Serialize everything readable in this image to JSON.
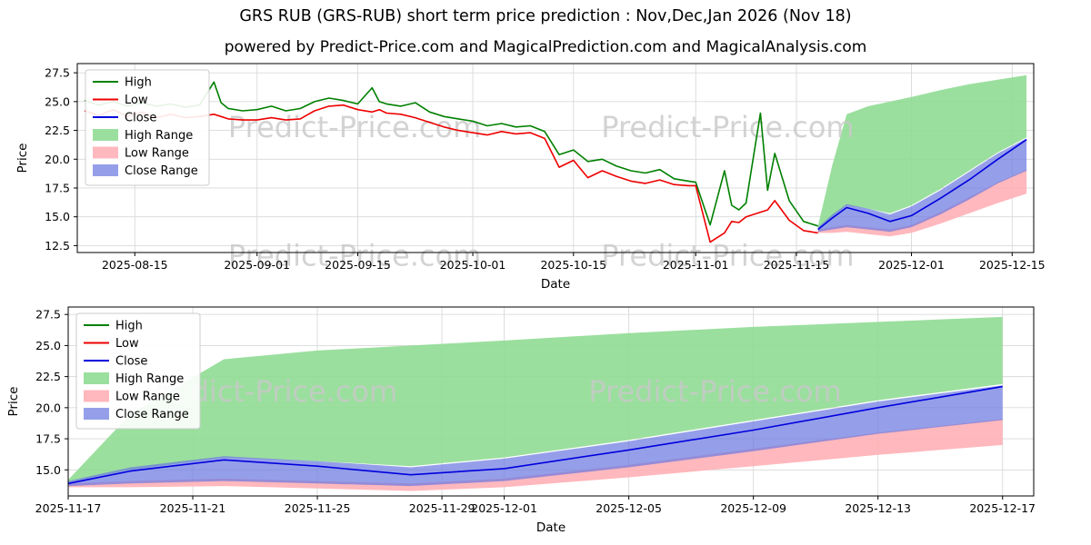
{
  "figure": {
    "title": "GRS RUB (GRS-RUB) short term price prediction : Nov,Dec,Jan 2026 (Nov 18)",
    "subtitle": "powered by Predict-Price.com and MagicalPrediction.com and MagicalAnalysis.com",
    "watermark_color": "#c9c9c9"
  },
  "chart_data": [
    {
      "type": "line",
      "title": "",
      "xlabel": "Date",
      "ylabel": "Price",
      "grid": true,
      "legend_position": "upper-left",
      "x_domain": [
        "2025-08-07",
        "2025-12-18"
      ],
      "y_domain": [
        11.9,
        28.3
      ],
      "x_ticks": [
        "2025-08-15",
        "2025-09-01",
        "2025-09-15",
        "2025-10-01",
        "2025-10-15",
        "2025-11-01",
        "2025-11-15",
        "2025-12-01",
        "2025-12-15"
      ],
      "y_ticks": [
        {
          "v": 12.5,
          "label": "12.5"
        },
        {
          "v": 15.0,
          "label": "15.0"
        },
        {
          "v": 17.5,
          "label": "17.5"
        },
        {
          "v": 20.0,
          "label": "20.0"
        },
        {
          "v": 22.5,
          "label": "22.5"
        },
        {
          "v": 25.0,
          "label": "25.0"
        },
        {
          "v": 27.5,
          "label": "27.5"
        }
      ],
      "legend": [
        {
          "id": "high",
          "label": "High",
          "kind": "line",
          "color": "#008000"
        },
        {
          "id": "low",
          "label": "Low",
          "kind": "line",
          "color": "#ee0000"
        },
        {
          "id": "close",
          "label": "Close",
          "kind": "line",
          "color": "#0000dd"
        },
        {
          "id": "high-range",
          "label": "High Range",
          "kind": "patch",
          "color": "rgba(144,220,148,0.9)"
        },
        {
          "id": "low-range",
          "label": "Low Range",
          "kind": "patch",
          "color": "rgba(255,176,182,0.9)"
        },
        {
          "id": "close-range",
          "label": "Close Range",
          "kind": "patch",
          "color": "rgba(108,122,224,0.72)"
        }
      ],
      "bands": [
        {
          "id": "high-range",
          "color": "rgba(144,220,148,0.9)",
          "x": [
            "2025-11-18",
            "2025-11-20",
            "2025-11-22",
            "2025-11-25",
            "2025-11-28",
            "2025-12-01",
            "2025-12-05",
            "2025-12-09",
            "2025-12-13",
            "2025-12-17"
          ],
          "upper": [
            14.2,
            19.5,
            23.9,
            24.6,
            25.0,
            25.4,
            26.0,
            26.5,
            26.9,
            27.3
          ],
          "lower": [
            14.0,
            15.0,
            16.0,
            15.7,
            15.3,
            16.0,
            17.4,
            19.0,
            20.6,
            21.9
          ]
        },
        {
          "id": "low-range",
          "color": "rgba(255,176,182,0.9)",
          "x": [
            "2025-11-18",
            "2025-11-20",
            "2025-11-22",
            "2025-11-25",
            "2025-11-28",
            "2025-12-01",
            "2025-12-05",
            "2025-12-09",
            "2025-12-13",
            "2025-12-17"
          ],
          "upper": [
            13.9,
            14.1,
            14.3,
            14.1,
            13.9,
            14.3,
            15.4,
            16.7,
            18.0,
            19.1
          ],
          "lower": [
            13.6,
            13.6,
            13.7,
            13.5,
            13.3,
            13.6,
            14.4,
            15.3,
            16.2,
            17.0
          ]
        },
        {
          "id": "close-range",
          "color": "rgba(108,122,224,0.72)",
          "x": [
            "2025-11-18",
            "2025-11-20",
            "2025-11-22",
            "2025-11-25",
            "2025-11-28",
            "2025-12-01",
            "2025-12-05",
            "2025-12-09",
            "2025-12-13",
            "2025-12-17"
          ],
          "upper": [
            14.1,
            15.2,
            16.1,
            15.7,
            15.2,
            15.9,
            17.3,
            18.9,
            20.5,
            21.8
          ],
          "lower": [
            13.7,
            13.9,
            14.1,
            13.9,
            13.7,
            14.1,
            15.2,
            16.5,
            17.9,
            19.0
          ]
        }
      ],
      "series": [
        {
          "id": "high",
          "name": "High",
          "color": "#008000",
          "x": [
            "2025-08-08",
            "2025-08-10",
            "2025-08-12",
            "2025-08-14",
            "2025-08-16",
            "2025-08-18",
            "2025-08-20",
            "2025-08-22",
            "2025-08-24",
            "2025-08-26",
            "2025-08-27",
            "2025-08-28",
            "2025-08-30",
            "2025-09-01",
            "2025-09-03",
            "2025-09-05",
            "2025-09-07",
            "2025-09-09",
            "2025-09-11",
            "2025-09-13",
            "2025-09-15",
            "2025-09-17",
            "2025-09-18",
            "2025-09-19",
            "2025-09-21",
            "2025-09-23",
            "2025-09-25",
            "2025-09-27",
            "2025-09-29",
            "2025-10-01",
            "2025-10-03",
            "2025-10-05",
            "2025-10-07",
            "2025-10-09",
            "2025-10-11",
            "2025-10-13",
            "2025-10-15",
            "2025-10-17",
            "2025-10-19",
            "2025-10-21",
            "2025-10-23",
            "2025-10-25",
            "2025-10-27",
            "2025-10-29",
            "2025-10-31",
            "2025-11-01",
            "2025-11-03",
            "2025-11-05",
            "2025-11-06",
            "2025-11-07",
            "2025-11-08",
            "2025-11-10",
            "2025-11-11",
            "2025-11-12",
            "2025-11-14",
            "2025-11-16",
            "2025-11-18"
          ],
          "y": [
            25.1,
            24.7,
            25.0,
            24.6,
            24.9,
            24.6,
            24.8,
            24.5,
            24.7,
            26.7,
            24.9,
            24.4,
            24.2,
            24.3,
            24.6,
            24.2,
            24.4,
            25.0,
            25.3,
            25.1,
            24.8,
            26.2,
            25.0,
            24.8,
            24.6,
            24.9,
            24.1,
            23.7,
            23.5,
            23.3,
            22.9,
            23.1,
            22.8,
            22.9,
            22.4,
            20.4,
            20.8,
            19.8,
            20.0,
            19.4,
            19.0,
            18.8,
            19.1,
            18.3,
            18.1,
            18.0,
            14.3,
            19.0,
            16.0,
            15.6,
            16.2,
            24.0,
            17.3,
            20.5,
            16.4,
            14.6,
            14.2
          ]
        },
        {
          "id": "low",
          "name": "Low",
          "color": "#ee0000",
          "x": [
            "2025-08-08",
            "2025-08-10",
            "2025-08-12",
            "2025-08-14",
            "2025-08-16",
            "2025-08-18",
            "2025-08-20",
            "2025-08-22",
            "2025-08-24",
            "2025-08-26",
            "2025-08-27",
            "2025-08-28",
            "2025-08-30",
            "2025-09-01",
            "2025-09-03",
            "2025-09-05",
            "2025-09-07",
            "2025-09-09",
            "2025-09-11",
            "2025-09-13",
            "2025-09-15",
            "2025-09-17",
            "2025-09-18",
            "2025-09-19",
            "2025-09-21",
            "2025-09-23",
            "2025-09-25",
            "2025-09-27",
            "2025-09-29",
            "2025-10-01",
            "2025-10-03",
            "2025-10-05",
            "2025-10-07",
            "2025-10-09",
            "2025-10-11",
            "2025-10-13",
            "2025-10-15",
            "2025-10-17",
            "2025-10-19",
            "2025-10-21",
            "2025-10-23",
            "2025-10-25",
            "2025-10-27",
            "2025-10-29",
            "2025-10-31",
            "2025-11-01",
            "2025-11-03",
            "2025-11-05",
            "2025-11-06",
            "2025-11-07",
            "2025-11-08",
            "2025-11-10",
            "2025-11-11",
            "2025-11-12",
            "2025-11-14",
            "2025-11-16",
            "2025-11-18"
          ],
          "y": [
            24.2,
            23.8,
            24.3,
            23.7,
            24.1,
            23.6,
            23.9,
            23.6,
            23.7,
            23.9,
            23.7,
            23.5,
            23.4,
            23.4,
            23.6,
            23.4,
            23.5,
            24.2,
            24.6,
            24.7,
            24.3,
            24.1,
            24.3,
            24.0,
            23.9,
            23.6,
            23.2,
            22.8,
            22.5,
            22.3,
            22.1,
            22.4,
            22.2,
            22.3,
            21.8,
            19.3,
            19.9,
            18.4,
            19.0,
            18.5,
            18.1,
            17.9,
            18.2,
            17.8,
            17.7,
            17.7,
            12.8,
            13.6,
            14.6,
            14.5,
            15.0,
            15.4,
            15.6,
            16.4,
            14.7,
            13.8,
            13.6
          ]
        },
        {
          "id": "close",
          "name": "Close",
          "color": "#0000dd",
          "x": [
            "2025-11-18",
            "2025-11-20",
            "2025-11-22",
            "2025-11-25",
            "2025-11-28",
            "2025-12-01",
            "2025-12-05",
            "2025-12-09",
            "2025-12-13",
            "2025-12-17"
          ],
          "y": [
            13.9,
            14.9,
            15.8,
            15.3,
            14.6,
            15.1,
            16.6,
            18.2,
            20.0,
            21.7
          ]
        }
      ],
      "watermarks": [
        {
          "text": "Predict-Price.com",
          "fx": 0.29,
          "fy": 0.39
        },
        {
          "text": "Predict-Price.com",
          "fx": 0.68,
          "fy": 0.39
        },
        {
          "text": "Predict-Price.com",
          "fx": 0.29,
          "fy": 1.07
        },
        {
          "text": "Predict-Price.com",
          "fx": 0.68,
          "fy": 1.07
        }
      ]
    },
    {
      "type": "line",
      "title": "",
      "xlabel": "Date",
      "ylabel": "Price",
      "grid": true,
      "legend_position": "upper-left",
      "x_domain": [
        "2025-11-17",
        "2025-12-18"
      ],
      "y_domain": [
        12.9,
        28.1
      ],
      "x_ticks": [
        "2025-11-17",
        "2025-11-21",
        "2025-11-25",
        "2025-11-29",
        "2025-12-01",
        "2025-12-05",
        "2025-12-09",
        "2025-12-13",
        "2025-12-17"
      ],
      "y_ticks": [
        {
          "v": 15.0,
          "label": "15.0"
        },
        {
          "v": 17.5,
          "label": "17.5"
        },
        {
          "v": 20.0,
          "label": "20.0"
        },
        {
          "v": 22.5,
          "label": "22.5"
        },
        {
          "v": 25.0,
          "label": "25.0"
        },
        {
          "v": 27.5,
          "label": "27.5"
        }
      ],
      "legend": [
        {
          "id": "high",
          "label": "High",
          "kind": "line",
          "color": "#008000"
        },
        {
          "id": "low",
          "label": "Low",
          "kind": "line",
          "color": "#ee0000"
        },
        {
          "id": "close",
          "label": "Close",
          "kind": "line",
          "color": "#0000dd"
        },
        {
          "id": "high-range",
          "label": "High Range",
          "kind": "patch",
          "color": "rgba(144,220,148,0.9)"
        },
        {
          "id": "low-range",
          "label": "Low Range",
          "kind": "patch",
          "color": "rgba(255,176,182,0.9)"
        },
        {
          "id": "close-range",
          "label": "Close Range",
          "kind": "patch",
          "color": "rgba(108,122,224,0.72)"
        }
      ],
      "bands": [
        {
          "id": "high-range",
          "color": "rgba(144,220,148,0.9)",
          "x": [
            "2025-11-17",
            "2025-11-19",
            "2025-11-22",
            "2025-11-25",
            "2025-11-28",
            "2025-12-01",
            "2025-12-05",
            "2025-12-09",
            "2025-12-13",
            "2025-12-17"
          ],
          "upper": [
            14.2,
            19.5,
            23.9,
            24.6,
            25.0,
            25.4,
            26.0,
            26.5,
            26.9,
            27.3
          ],
          "lower": [
            14.0,
            15.0,
            16.0,
            15.7,
            15.3,
            16.0,
            17.4,
            19.0,
            20.6,
            21.9
          ]
        },
        {
          "id": "low-range",
          "color": "rgba(255,176,182,0.9)",
          "x": [
            "2025-11-17",
            "2025-11-19",
            "2025-11-22",
            "2025-11-25",
            "2025-11-28",
            "2025-12-01",
            "2025-12-05",
            "2025-12-09",
            "2025-12-13",
            "2025-12-17"
          ],
          "upper": [
            13.9,
            14.1,
            14.3,
            14.1,
            13.9,
            14.3,
            15.4,
            16.7,
            18.0,
            19.1
          ],
          "lower": [
            13.6,
            13.6,
            13.7,
            13.5,
            13.3,
            13.6,
            14.4,
            15.3,
            16.2,
            17.0
          ]
        },
        {
          "id": "close-range",
          "color": "rgba(108,122,224,0.72)",
          "x": [
            "2025-11-17",
            "2025-11-19",
            "2025-11-22",
            "2025-11-25",
            "2025-11-28",
            "2025-12-01",
            "2025-12-05",
            "2025-12-09",
            "2025-12-13",
            "2025-12-17"
          ],
          "upper": [
            14.1,
            15.2,
            16.1,
            15.7,
            15.2,
            15.9,
            17.3,
            18.9,
            20.5,
            21.8
          ],
          "lower": [
            13.7,
            13.9,
            14.1,
            13.9,
            13.7,
            14.1,
            15.2,
            16.5,
            17.9,
            19.0
          ]
        }
      ],
      "series": [
        {
          "id": "close",
          "name": "Close",
          "color": "#0000dd",
          "x": [
            "2025-11-17",
            "2025-11-19",
            "2025-11-22",
            "2025-11-25",
            "2025-11-28",
            "2025-12-01",
            "2025-12-05",
            "2025-12-09",
            "2025-12-13",
            "2025-12-17"
          ],
          "y": [
            13.9,
            14.9,
            15.8,
            15.3,
            14.6,
            15.1,
            16.6,
            18.2,
            20.0,
            21.7
          ]
        }
      ],
      "watermarks": [
        {
          "text": "Predict-Price.com",
          "fx": 0.21,
          "fy": 0.5
        },
        {
          "text": "Predict-Price.com",
          "fx": 0.67,
          "fy": 0.5
        }
      ]
    }
  ]
}
